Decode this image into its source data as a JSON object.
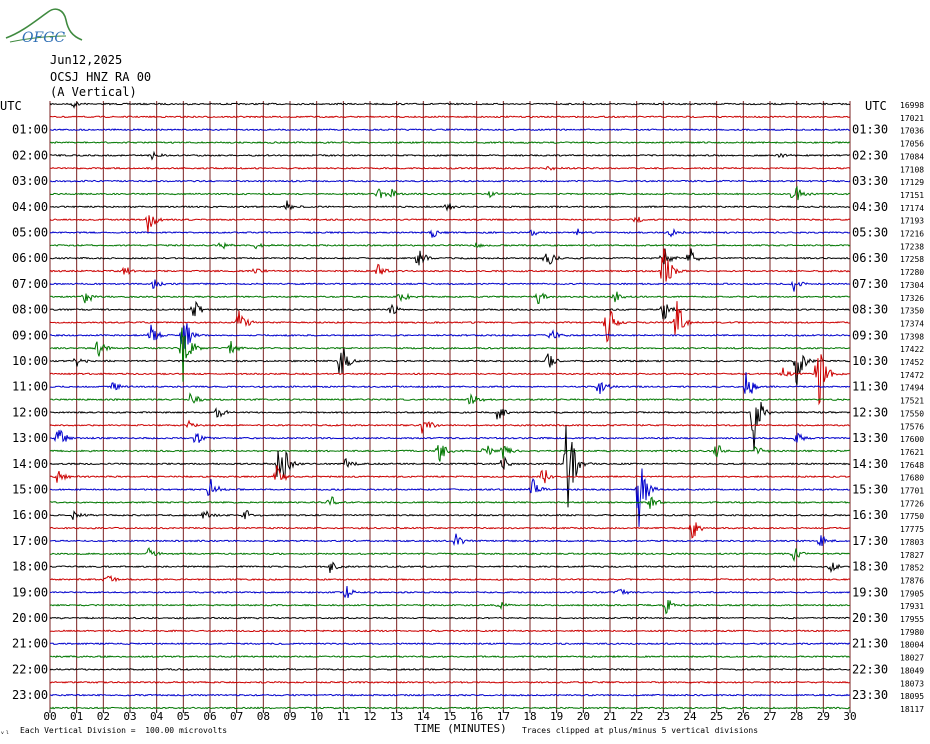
{
  "logo": {
    "text": "OFGC",
    "color_text": "#2e6fb5",
    "color_arc": "#3f8a3f"
  },
  "header": {
    "date": "Jun12,2025",
    "station": "OCSJ HNZ RA 00",
    "component": "(A Vertical)"
  },
  "chart_data": {
    "type": "line",
    "subtype": "helicorder",
    "xlabel": "TIME (MINUTES)",
    "xlim": [
      0,
      30
    ],
    "x_ticks": [
      "00",
      "01",
      "02",
      "03",
      "04",
      "05",
      "06",
      "07",
      "08",
      "09",
      "10",
      "11",
      "12",
      "13",
      "14",
      "15",
      "16",
      "17",
      "18",
      "19",
      "20",
      "21",
      "22",
      "23",
      "24",
      "25",
      "26",
      "27",
      "28",
      "29",
      "30"
    ],
    "left_axis_title": "UTC",
    "right_axis_title": "UTC",
    "left_labels": [
      "01:00",
      "02:00",
      "03:00",
      "04:00",
      "05:00",
      "06:00",
      "07:00",
      "08:00",
      "09:00",
      "10:00",
      "11:00",
      "12:00",
      "13:00",
      "14:00",
      "15:00",
      "16:00",
      "17:00",
      "18:00",
      "19:00",
      "20:00",
      "21:00",
      "22:00",
      "23:00"
    ],
    "right_labels": [
      "01:30",
      "02:30",
      "03:30",
      "04:30",
      "05:30",
      "06:30",
      "07:30",
      "08:30",
      "09:30",
      "10:30",
      "11:30",
      "12:30",
      "13:30",
      "14:30",
      "15:30",
      "16:30",
      "17:30",
      "18:30",
      "19:30",
      "20:30",
      "21:30",
      "22:30",
      "23:30"
    ],
    "trace_counts": [
      "16998",
      "17021",
      "17036",
      "17056",
      "17084",
      "17108",
      "17129",
      "17151",
      "17174",
      "17193",
      "17216",
      "17238",
      "17258",
      "17280",
      "17304",
      "17326",
      "17350",
      "17374",
      "17398",
      "17422",
      "17452",
      "17472",
      "17494",
      "17521",
      "17550",
      "17576",
      "17600",
      "17621",
      "17648",
      "17680",
      "17701",
      "17726",
      "17750",
      "17775",
      "17803",
      "17827",
      "17852",
      "17876",
      "17905",
      "17931",
      "17955",
      "17980",
      "18004",
      "18027",
      "18049",
      "18073",
      "18095",
      "18117"
    ],
    "trace_colors": [
      "#000000",
      "#cc0000",
      "#0000cc",
      "#007700"
    ],
    "grid": true,
    "grid_color": "#7a2020",
    "events": [
      {
        "trace": 0,
        "minute": 0.9,
        "amp": 4
      },
      {
        "trace": 5,
        "minute": 18.7,
        "amp": 3
      },
      {
        "trace": 4,
        "minute": 3.8,
        "amp": 5
      },
      {
        "trace": 4,
        "minute": 27.4,
        "amp": 5
      },
      {
        "trace": 7,
        "minute": 12.3,
        "amp": 8
      },
      {
        "trace": 7,
        "minute": 12.8,
        "amp": 6
      },
      {
        "trace": 7,
        "minute": 16.5,
        "amp": 5
      },
      {
        "trace": 7,
        "minute": 27.9,
        "amp": 14
      },
      {
        "trace": 8,
        "minute": 8.9,
        "amp": 7
      },
      {
        "trace": 8,
        "minute": 14.9,
        "amp": 6
      },
      {
        "trace": 9,
        "minute": 3.7,
        "amp": 16
      },
      {
        "trace": 9,
        "minute": 22.0,
        "amp": 5
      },
      {
        "trace": 10,
        "minute": 14.3,
        "amp": 7
      },
      {
        "trace": 10,
        "minute": 18.1,
        "amp": 4
      },
      {
        "trace": 10,
        "minute": 19.8,
        "amp": 4
      },
      {
        "trace": 10,
        "minute": 23.3,
        "amp": 5
      },
      {
        "trace": 11,
        "minute": 6.4,
        "amp": 7
      },
      {
        "trace": 11,
        "minute": 7.7,
        "amp": 4
      },
      {
        "trace": 11,
        "minute": 16.0,
        "amp": 3
      },
      {
        "trace": 12,
        "minute": 13.8,
        "amp": 12
      },
      {
        "trace": 12,
        "minute": 18.6,
        "amp": 14
      },
      {
        "trace": 12,
        "minute": 23.0,
        "amp": 14
      },
      {
        "trace": 12,
        "minute": 24.0,
        "amp": 12
      },
      {
        "trace": 13,
        "minute": 2.8,
        "amp": 6
      },
      {
        "trace": 13,
        "minute": 7.7,
        "amp": 4
      },
      {
        "trace": 13,
        "minute": 12.3,
        "amp": 8
      },
      {
        "trace": 13,
        "minute": 23.0,
        "amp": 30
      },
      {
        "trace": 14,
        "minute": 3.9,
        "amp": 7
      },
      {
        "trace": 14,
        "minute": 27.9,
        "amp": 8
      },
      {
        "trace": 15,
        "minute": 1.3,
        "amp": 10
      },
      {
        "trace": 15,
        "minute": 13.1,
        "amp": 9
      },
      {
        "trace": 15,
        "minute": 18.3,
        "amp": 8
      },
      {
        "trace": 15,
        "minute": 21.2,
        "amp": 7
      },
      {
        "trace": 16,
        "minute": 5.4,
        "amp": 14
      },
      {
        "trace": 16,
        "minute": 12.8,
        "amp": 8
      },
      {
        "trace": 16,
        "minute": 23.0,
        "amp": 12
      },
      {
        "trace": 17,
        "minute": 7.1,
        "amp": 14
      },
      {
        "trace": 17,
        "minute": 20.9,
        "amp": 30
      },
      {
        "trace": 17,
        "minute": 23.5,
        "amp": 26
      },
      {
        "trace": 18,
        "minute": 3.8,
        "amp": 12
      },
      {
        "trace": 18,
        "minute": 5.0,
        "amp": 30
      },
      {
        "trace": 18,
        "minute": 18.8,
        "amp": 8
      },
      {
        "trace": 19,
        "minute": 5.0,
        "amp": 40
      },
      {
        "trace": 19,
        "minute": 1.8,
        "amp": 12
      },
      {
        "trace": 19,
        "minute": 6.8,
        "amp": 8
      },
      {
        "trace": 20,
        "minute": 1.0,
        "amp": 8
      },
      {
        "trace": 20,
        "minute": 10.9,
        "amp": 26
      },
      {
        "trace": 20,
        "minute": 18.7,
        "amp": 10
      },
      {
        "trace": 20,
        "minute": 28.0,
        "amp": 26
      },
      {
        "trace": 21,
        "minute": 28.8,
        "amp": 42
      },
      {
        "trace": 21,
        "minute": 27.5,
        "amp": 8
      },
      {
        "trace": 22,
        "minute": 2.4,
        "amp": 8
      },
      {
        "trace": 22,
        "minute": 20.6,
        "amp": 12
      },
      {
        "trace": 22,
        "minute": 26.1,
        "amp": 20
      },
      {
        "trace": 23,
        "minute": 5.3,
        "amp": 12
      },
      {
        "trace": 23,
        "minute": 15.8,
        "amp": 10
      },
      {
        "trace": 24,
        "minute": 6.3,
        "amp": 8
      },
      {
        "trace": 24,
        "minute": 16.8,
        "amp": 10
      },
      {
        "trace": 24,
        "minute": 26.4,
        "amp": 44
      },
      {
        "trace": 25,
        "minute": 14.0,
        "amp": 12
      },
      {
        "trace": 25,
        "minute": 5.2,
        "amp": 6
      },
      {
        "trace": 26,
        "minute": 0.3,
        "amp": 16
      },
      {
        "trace": 26,
        "minute": 5.5,
        "amp": 12
      },
      {
        "trace": 26,
        "minute": 28.0,
        "amp": 8
      },
      {
        "trace": 27,
        "minute": 14.6,
        "amp": 14
      },
      {
        "trace": 27,
        "minute": 16.3,
        "amp": 10
      },
      {
        "trace": 27,
        "minute": 17.0,
        "amp": 10
      },
      {
        "trace": 27,
        "minute": 25.0,
        "amp": 10
      },
      {
        "trace": 27,
        "minute": 26.5,
        "amp": 8
      },
      {
        "trace": 28,
        "minute": 8.6,
        "amp": 44
      },
      {
        "trace": 28,
        "minute": 11.1,
        "amp": 10
      },
      {
        "trace": 28,
        "minute": 19.4,
        "amp": 60
      },
      {
        "trace": 28,
        "minute": 17.0,
        "amp": 8
      },
      {
        "trace": 29,
        "minute": 0.3,
        "amp": 8
      },
      {
        "trace": 29,
        "minute": 8.5,
        "amp": 12
      },
      {
        "trace": 29,
        "minute": 18.5,
        "amp": 12
      },
      {
        "trace": 30,
        "minute": 6.0,
        "amp": 12
      },
      {
        "trace": 30,
        "minute": 18.1,
        "amp": 12
      },
      {
        "trace": 30,
        "minute": 22.1,
        "amp": 44
      },
      {
        "trace": 31,
        "minute": 10.5,
        "amp": 8
      },
      {
        "trace": 31,
        "minute": 22.5,
        "amp": 8
      },
      {
        "trace": 32,
        "minute": 0.9,
        "amp": 6
      },
      {
        "trace": 32,
        "minute": 5.8,
        "amp": 6
      },
      {
        "trace": 32,
        "minute": 7.3,
        "amp": 8
      },
      {
        "trace": 33,
        "minute": 24.1,
        "amp": 12
      },
      {
        "trace": 34,
        "minute": 15.2,
        "amp": 8
      },
      {
        "trace": 34,
        "minute": 28.9,
        "amp": 8
      },
      {
        "trace": 35,
        "minute": 3.7,
        "amp": 8
      },
      {
        "trace": 35,
        "minute": 27.9,
        "amp": 8
      },
      {
        "trace": 36,
        "minute": 10.5,
        "amp": 8
      },
      {
        "trace": 36,
        "minute": 29.3,
        "amp": 6
      },
      {
        "trace": 37,
        "minute": 2.1,
        "amp": 8
      },
      {
        "trace": 38,
        "minute": 11.1,
        "amp": 8
      },
      {
        "trace": 38,
        "minute": 21.3,
        "amp": 8
      },
      {
        "trace": 39,
        "minute": 16.8,
        "amp": 6
      },
      {
        "trace": 39,
        "minute": 23.1,
        "amp": 10
      }
    ]
  },
  "footer": {
    "left": "Each Vertical Division =  100.00 microvolts",
    "right": "Traces clipped at plus/minus 5 vertical divisions"
  }
}
